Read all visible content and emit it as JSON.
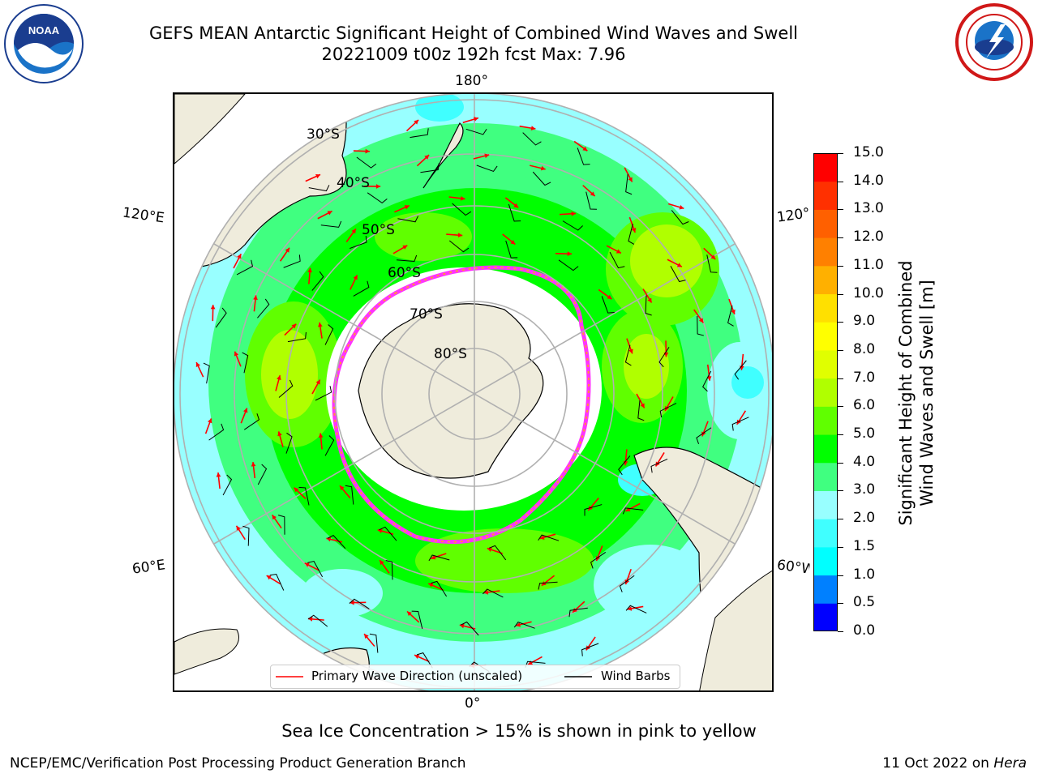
{
  "title_line1": "GEFS MEAN Antarctic Significant Height of Combined Wind Waves and Swell",
  "title_line2": "20221009 t00z 192h fcst   Max: 7.96",
  "logos": {
    "left": "noaa-logo",
    "right": "nws-logo"
  },
  "map": {
    "lon_labels": {
      "top": "180°",
      "bottom": "0°",
      "upper_left": "120°E",
      "upper_right": "120°W",
      "lower_left": "60°E",
      "lower_right": "60°W"
    },
    "lat_labels": [
      "30°S",
      "40°S",
      "50°S",
      "60°S",
      "70°S",
      "80°S"
    ],
    "land_color": "#efecdc",
    "ice_edge_colors": [
      "#ff33ff",
      "#ff9933",
      "#ffcc66"
    ]
  },
  "legend": {
    "primary_wave": "Primary Wave Direction (unscaled)",
    "wind_barbs": "Wind Barbs"
  },
  "colorbar": {
    "label_line1": "Significant Height of Combined",
    "label_line2": "Wind Waves and Swell [m]",
    "ticks": [
      "0.0",
      "0.5",
      "1.0",
      "1.5",
      "2.0",
      "3.0",
      "4.0",
      "5.0",
      "6.0",
      "7.0",
      "8.0",
      "9.0",
      "10.0",
      "11.0",
      "12.0",
      "13.0",
      "14.0",
      "15.0"
    ],
    "colors": [
      "#0000ff",
      "#0080ff",
      "#00ffff",
      "#40ffff",
      "#98ffff",
      "#40ff80",
      "#00ff00",
      "#60ff00",
      "#b0ff00",
      "#e0ff00",
      "#ffff00",
      "#ffe000",
      "#ffb000",
      "#ff8000",
      "#ff6000",
      "#ff3000",
      "#ff0000"
    ]
  },
  "subtitle": "Sea Ice Concentration > 15% is shown in pink to yellow",
  "footer_left": "NCEP/EMC/Verification Post Processing Product Generation Branch",
  "footer_date": "11 Oct 2022 on",
  "footer_host": "Hera"
}
